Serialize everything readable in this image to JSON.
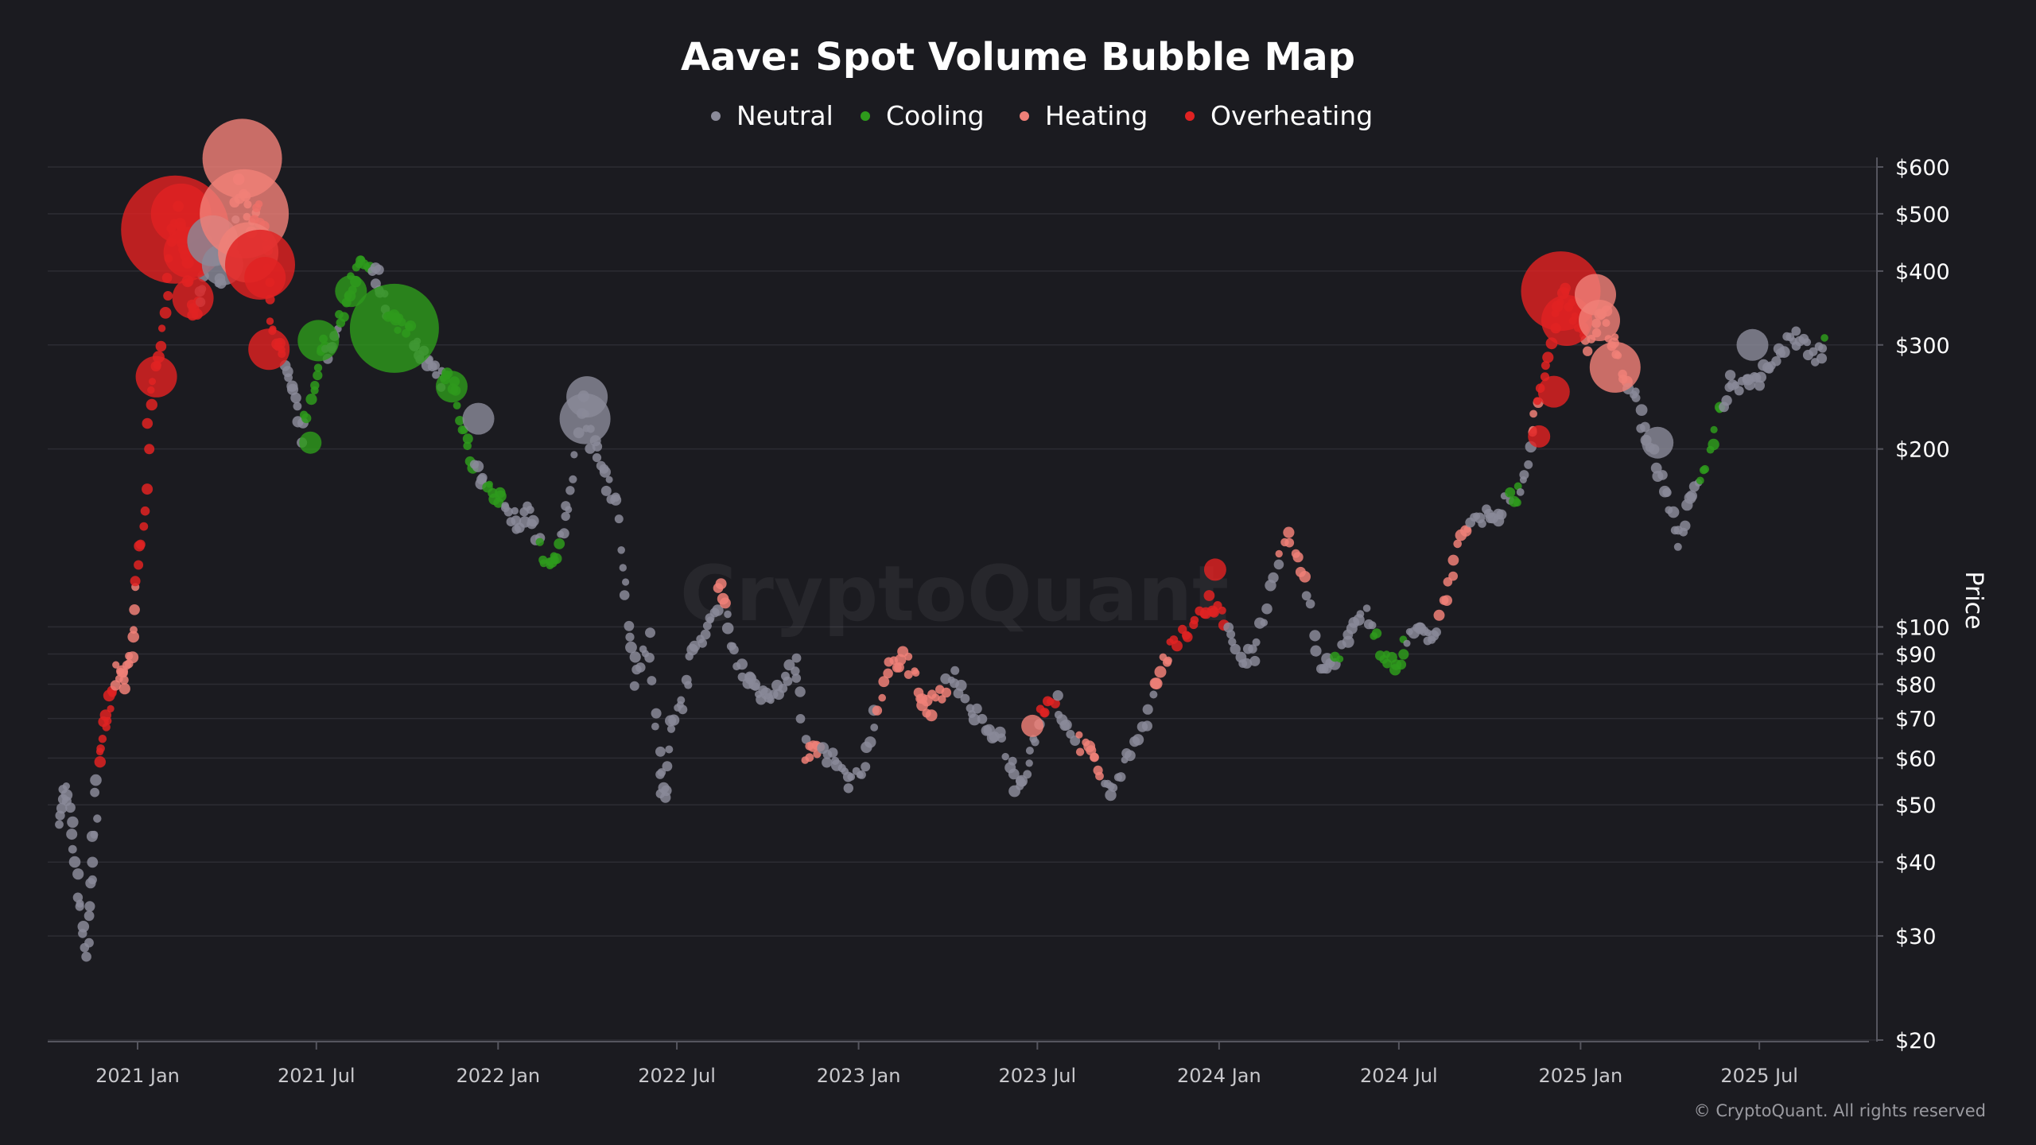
{
  "chart_data": {
    "type": "scatter",
    "title": "Aave: Spot Volume Bubble Map",
    "ylabel": "Price",
    "yscale": "log",
    "ylim": [
      20,
      700
    ],
    "xlim": [
      "2020-10-02",
      "2025-10-20"
    ],
    "grid": true,
    "legend_position": "top-center",
    "watermark": "CryptoQuant",
    "copyright": "© CryptoQuant. All rights reserved",
    "y_ticks": [
      {
        "value": 600,
        "label": "$600"
      },
      {
        "value": 500,
        "label": "$500"
      },
      {
        "value": 400,
        "label": "$400"
      },
      {
        "value": 300,
        "label": "$300"
      },
      {
        "value": 200,
        "label": "$200"
      },
      {
        "value": 100,
        "label": "$100"
      },
      {
        "value": 90,
        "label": "$90"
      },
      {
        "value": 80,
        "label": "$80"
      },
      {
        "value": 70,
        "label": "$70"
      },
      {
        "value": 60,
        "label": "$60"
      },
      {
        "value": 50,
        "label": "$50"
      },
      {
        "value": 40,
        "label": "$40"
      },
      {
        "value": 30,
        "label": "$30"
      },
      {
        "value": 20,
        "label": "$20"
      }
    ],
    "x_ticks": [
      {
        "value": "2021-01-01",
        "label": "2021 Jan"
      },
      {
        "value": "2021-07-01",
        "label": "2021 Jul"
      },
      {
        "value": "2022-01-01",
        "label": "2022 Jan"
      },
      {
        "value": "2022-07-01",
        "label": "2022 Jul"
      },
      {
        "value": "2023-01-01",
        "label": "2023 Jan"
      },
      {
        "value": "2023-07-01",
        "label": "2023 Jul"
      },
      {
        "value": "2024-01-01",
        "label": "2024 Jan"
      },
      {
        "value": "2024-07-01",
        "label": "2024 Jul"
      },
      {
        "value": "2025-01-01",
        "label": "2025 Jan"
      },
      {
        "value": "2025-07-01",
        "label": "2025 Jul"
      }
    ],
    "series": [
      {
        "name": "Neutral",
        "color": "#8a8a99"
      },
      {
        "name": "Cooling",
        "color": "#2e9a1c"
      },
      {
        "name": "Heating",
        "color": "#f08078"
      },
      {
        "name": "Overheating",
        "color": "#e02222"
      }
    ],
    "price_path": [
      [
        "2020-10-12",
        48
      ],
      [
        "2020-10-20",
        53
      ],
      [
        "2020-10-27",
        45
      ],
      [
        "2020-11-04",
        34
      ],
      [
        "2020-11-10",
        28
      ],
      [
        "2020-11-16",
        38
      ],
      [
        "2020-11-20",
        52
      ],
      [
        "2020-11-26",
        67
      ],
      [
        "2020-12-03",
        72
      ],
      [
        "2020-12-10",
        85
      ],
      [
        "2020-12-18",
        80
      ],
      [
        "2020-12-25",
        90
      ],
      [
        "2020-12-31",
        120
      ],
      [
        "2021-01-08",
        160
      ],
      [
        "2021-01-16",
        260
      ],
      [
        "2021-01-24",
        300
      ],
      [
        "2021-02-03",
        430
      ],
      [
        "2021-02-10",
        500
      ],
      [
        "2021-02-18",
        420
      ],
      [
        "2021-02-25",
        340
      ],
      [
        "2021-03-06",
        360
      ],
      [
        "2021-03-15",
        440
      ],
      [
        "2021-03-25",
        380
      ],
      [
        "2021-04-05",
        440
      ],
      [
        "2021-04-15",
        560
      ],
      [
        "2021-04-25",
        470
      ],
      [
        "2021-05-05",
        520
      ],
      [
        "2021-05-12",
        420
      ],
      [
        "2021-05-18",
        320
      ],
      [
        "2021-05-25",
        300
      ],
      [
        "2021-06-05",
        260
      ],
      [
        "2021-06-15",
        210
      ],
      [
        "2021-06-28",
        245
      ],
      [
        "2021-07-06",
        300
      ],
      [
        "2021-07-15",
        290
      ],
      [
        "2021-07-25",
        330
      ],
      [
        "2021-08-03",
        360
      ],
      [
        "2021-08-12",
        410
      ],
      [
        "2021-08-22",
        400
      ],
      [
        "2021-09-02",
        390
      ],
      [
        "2021-09-10",
        340
      ],
      [
        "2021-09-20",
        330
      ],
      [
        "2021-10-01",
        320
      ],
      [
        "2021-10-10",
        300
      ],
      [
        "2021-10-22",
        280
      ],
      [
        "2021-11-03",
        260
      ],
      [
        "2021-11-12",
        270
      ],
      [
        "2021-11-25",
        230
      ],
      [
        "2021-12-04",
        190
      ],
      [
        "2021-12-15",
        175
      ],
      [
        "2021-12-28",
        170
      ],
      [
        "2022-01-10",
        160
      ],
      [
        "2022-01-21",
        150
      ],
      [
        "2022-02-03",
        160
      ],
      [
        "2022-02-14",
        135
      ],
      [
        "2022-02-24",
        125
      ],
      [
        "2022-03-05",
        140
      ],
      [
        "2022-03-15",
        170
      ],
      [
        "2022-03-29",
        240
      ],
      [
        "2022-04-08",
        200
      ],
      [
        "2022-04-20",
        180
      ],
      [
        "2022-05-02",
        160
      ],
      [
        "2022-05-10",
        110
      ],
      [
        "2022-05-20",
        82
      ],
      [
        "2022-06-03",
        95
      ],
      [
        "2022-06-13",
        60
      ],
      [
        "2022-06-18",
        50
      ],
      [
        "2022-06-26",
        70
      ],
      [
        "2022-07-08",
        75
      ],
      [
        "2022-07-20",
        95
      ],
      [
        "2022-08-03",
        100
      ],
      [
        "2022-08-14",
        118
      ],
      [
        "2022-08-24",
        95
      ],
      [
        "2022-09-07",
        84
      ],
      [
        "2022-09-19",
        78
      ],
      [
        "2022-10-02",
        75
      ],
      [
        "2022-10-16",
        80
      ],
      [
        "2022-10-30",
        88
      ],
      [
        "2022-11-09",
        60
      ],
      [
        "2022-11-20",
        62
      ],
      [
        "2022-12-04",
        60
      ],
      [
        "2022-12-20",
        55
      ],
      [
        "2023-01-05",
        56
      ],
      [
        "2023-01-18",
        70
      ],
      [
        "2023-02-02",
        85
      ],
      [
        "2023-02-16",
        88
      ],
      [
        "2023-03-03",
        80
      ],
      [
        "2023-03-12",
        72
      ],
      [
        "2023-03-26",
        78
      ],
      [
        "2023-04-10",
        82
      ],
      [
        "2023-04-26",
        72
      ],
      [
        "2023-05-12",
        68
      ],
      [
        "2023-05-30",
        62
      ],
      [
        "2023-06-12",
        52
      ],
      [
        "2023-06-22",
        58
      ],
      [
        "2023-07-05",
        72
      ],
      [
        "2023-07-18",
        76
      ],
      [
        "2023-08-01",
        68
      ],
      [
        "2023-08-18",
        62
      ],
      [
        "2023-09-01",
        58
      ],
      [
        "2023-09-14",
        52
      ],
      [
        "2023-10-01",
        60
      ],
      [
        "2023-10-20",
        68
      ],
      [
        "2023-11-02",
        85
      ],
      [
        "2023-11-16",
        95
      ],
      [
        "2023-12-05",
        100
      ],
      [
        "2023-12-22",
        110
      ],
      [
        "2024-01-06",
        102
      ],
      [
        "2024-01-22",
        88
      ],
      [
        "2024-02-05",
        90
      ],
      [
        "2024-02-22",
        115
      ],
      [
        "2024-03-10",
        140
      ],
      [
        "2024-03-28",
        120
      ],
      [
        "2024-04-13",
        88
      ],
      [
        "2024-04-26",
        85
      ],
      [
        "2024-05-12",
        95
      ],
      [
        "2024-05-28",
        105
      ],
      [
        "2024-06-12",
        92
      ],
      [
        "2024-06-26",
        85
      ],
      [
        "2024-07-10",
        95
      ],
      [
        "2024-07-24",
        100
      ],
      [
        "2024-08-06",
        95
      ],
      [
        "2024-08-20",
        120
      ],
      [
        "2024-09-05",
        145
      ],
      [
        "2024-09-20",
        155
      ],
      [
        "2024-10-05",
        150
      ],
      [
        "2024-10-20",
        165
      ],
      [
        "2024-11-01",
        170
      ],
      [
        "2024-11-12",
        210
      ],
      [
        "2024-11-22",
        250
      ],
      [
        "2024-12-05",
        320
      ],
      [
        "2024-12-16",
        370
      ],
      [
        "2024-12-28",
        330
      ],
      [
        "2025-01-10",
        300
      ],
      [
        "2025-01-24",
        340
      ],
      [
        "2025-02-03",
        300
      ],
      [
        "2025-02-14",
        270
      ],
      [
        "2025-02-28",
        240
      ],
      [
        "2025-03-12",
        200
      ],
      [
        "2025-03-26",
        175
      ],
      [
        "2025-04-09",
        140
      ],
      [
        "2025-04-22",
        160
      ],
      [
        "2025-05-06",
        180
      ],
      [
        "2025-05-20",
        230
      ],
      [
        "2025-06-03",
        260
      ],
      [
        "2025-06-17",
        260
      ],
      [
        "2025-07-01",
        265
      ],
      [
        "2025-07-15",
        285
      ],
      [
        "2025-07-29",
        300
      ],
      [
        "2025-08-12",
        310
      ],
      [
        "2025-08-26",
        290
      ],
      [
        "2025-09-09",
        300
      ]
    ],
    "bubbles": [
      {
        "date": "2021-01-20",
        "price": 265,
        "size": 3,
        "series": "Overheating"
      },
      {
        "date": "2021-02-08",
        "price": 470,
        "size": 10,
        "series": "Overheating"
      },
      {
        "date": "2021-02-14",
        "price": 500,
        "size": 5,
        "series": "Overheating"
      },
      {
        "date": "2021-02-22",
        "price": 430,
        "size": 4,
        "series": "Overheating"
      },
      {
        "date": "2021-02-26",
        "price": 360,
        "size": 3,
        "series": "Overheating"
      },
      {
        "date": "2021-03-18",
        "price": 450,
        "size": 4,
        "series": "Neutral"
      },
      {
        "date": "2021-03-28",
        "price": 410,
        "size": 3,
        "series": "Neutral"
      },
      {
        "date": "2021-04-17",
        "price": 620,
        "size": 7,
        "series": "Heating"
      },
      {
        "date": "2021-04-19",
        "price": 500,
        "size": 8,
        "series": "Heating"
      },
      {
        "date": "2021-04-23",
        "price": 430,
        "size": 5,
        "series": "Heating"
      },
      {
        "date": "2021-05-05",
        "price": 410,
        "size": 6,
        "series": "Overheating"
      },
      {
        "date": "2021-05-10",
        "price": 390,
        "size": 3,
        "series": "Overheating"
      },
      {
        "date": "2021-05-14",
        "price": 295,
        "size": 3,
        "series": "Overheating"
      },
      {
        "date": "2021-07-03",
        "price": 305,
        "size": 3,
        "series": "Cooling"
      },
      {
        "date": "2021-06-25",
        "price": 205,
        "size": 1,
        "series": "Cooling"
      },
      {
        "date": "2021-08-05",
        "price": 370,
        "size": 2,
        "series": "Cooling"
      },
      {
        "date": "2021-09-18",
        "price": 320,
        "size": 8,
        "series": "Cooling"
      },
      {
        "date": "2021-11-15",
        "price": 255,
        "size": 2,
        "series": "Cooling"
      },
      {
        "date": "2021-12-12",
        "price": 225,
        "size": 2,
        "series": "Neutral"
      },
      {
        "date": "2022-04-01",
        "price": 245,
        "size": 3,
        "series": "Neutral"
      },
      {
        "date": "2022-03-30",
        "price": 225,
        "size": 4,
        "series": "Neutral"
      },
      {
        "date": "2024-11-20",
        "price": 210,
        "size": 1,
        "series": "Overheating"
      },
      {
        "date": "2024-12-05",
        "price": 250,
        "size": 2,
        "series": "Overheating"
      },
      {
        "date": "2024-12-12",
        "price": 370,
        "size": 7,
        "series": "Overheating"
      },
      {
        "date": "2024-12-18",
        "price": 330,
        "size": 4,
        "series": "Overheating"
      },
      {
        "date": "2025-01-16",
        "price": 365,
        "size": 3,
        "series": "Heating"
      },
      {
        "date": "2025-01-20",
        "price": 330,
        "size": 3,
        "series": "Heating"
      },
      {
        "date": "2025-02-05",
        "price": 275,
        "size": 4,
        "series": "Heating"
      },
      {
        "date": "2025-03-20",
        "price": 205,
        "size": 2,
        "series": "Neutral"
      },
      {
        "date": "2025-06-24",
        "price": 300,
        "size": 2,
        "series": "Neutral"
      },
      {
        "date": "2023-06-26",
        "price": 68,
        "size": 1,
        "series": "Heating"
      },
      {
        "date": "2023-12-28",
        "price": 125,
        "size": 1,
        "series": "Overheating"
      }
    ]
  }
}
